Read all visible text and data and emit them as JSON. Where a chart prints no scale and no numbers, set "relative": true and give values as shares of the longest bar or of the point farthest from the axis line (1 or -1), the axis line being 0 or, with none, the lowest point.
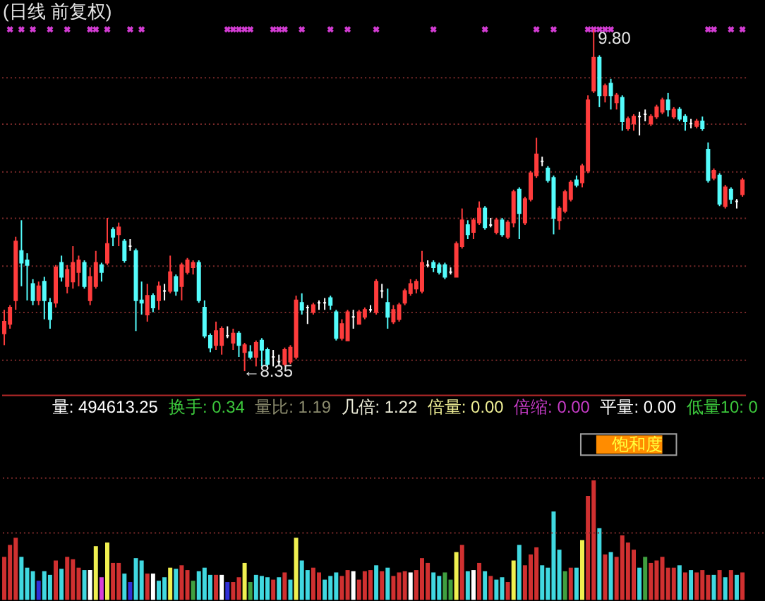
{
  "chart_data": [
    {
      "type": "candlestick",
      "title": "(日线 前复权)",
      "categories": [
        null,
        null,
        null,
        null,
        null,
        null,
        null,
        null,
        null,
        null,
        null,
        null,
        null,
        null,
        null,
        null,
        null,
        null,
        null,
        null,
        null,
        null,
        null,
        null,
        null,
        null,
        null,
        null,
        null,
        null,
        null,
        null,
        null,
        null,
        null,
        null,
        null,
        null,
        null,
        null,
        null,
        null,
        null,
        null,
        null,
        null,
        null,
        null,
        null,
        null,
        null,
        null,
        null,
        null,
        null,
        null,
        null,
        null,
        null,
        null,
        null,
        null,
        null,
        null,
        null,
        null,
        null,
        null,
        null,
        null,
        null,
        null,
        null,
        null,
        null,
        null,
        null,
        null,
        null,
        null,
        null,
        null,
        null,
        null,
        null,
        null,
        null,
        null,
        null,
        null,
        null,
        null,
        null,
        null,
        null,
        null,
        null,
        null,
        null,
        null,
        null,
        null,
        null,
        null,
        null,
        null,
        null,
        null,
        null,
        null,
        null,
        null,
        null,
        null,
        null,
        null,
        null,
        null,
        null,
        null,
        null,
        null,
        null,
        null,
        null,
        null,
        null,
        null,
        null,
        null
      ],
      "ohlc": [
        [
          8.51,
          8.61,
          8.46,
          8.56
        ],
        [
          8.55,
          8.63,
          8.53,
          8.62
        ],
        [
          8.65,
          8.92,
          8.61,
          8.9
        ],
        [
          8.86,
          8.99,
          8.71,
          8.81
        ],
        [
          8.82,
          8.85,
          8.65,
          8.8
        ],
        [
          8.72,
          8.74,
          8.63,
          8.65
        ],
        [
          8.65,
          8.73,
          8.63,
          8.71
        ],
        [
          8.73,
          8.75,
          8.57,
          8.65
        ],
        [
          8.64,
          8.66,
          8.53,
          8.57
        ],
        [
          8.64,
          8.8,
          8.62,
          8.79
        ],
        [
          8.81,
          8.84,
          8.73,
          8.75
        ],
        [
          8.71,
          8.8,
          8.68,
          8.78
        ],
        [
          8.73,
          8.88,
          8.7,
          8.81
        ],
        [
          8.77,
          8.84,
          8.71,
          8.82
        ],
        [
          8.81,
          8.82,
          8.7,
          8.71
        ],
        [
          8.65,
          8.79,
          8.63,
          8.75
        ],
        [
          8.71,
          8.86,
          8.7,
          8.81
        ],
        [
          8.8,
          8.81,
          8.73,
          8.77
        ],
        [
          8.81,
          9.0,
          8.8,
          8.89
        ],
        [
          8.95,
          8.96,
          8.88,
          8.92
        ],
        [
          8.93,
          8.98,
          8.88,
          8.96
        ],
        [
          8.9,
          8.91,
          8.81,
          8.82
        ],
        [
          8.88,
          8.91,
          8.86,
          8.88
        ],
        [
          8.86,
          8.87,
          8.52,
          8.65
        ],
        [
          8.65,
          8.73,
          8.59,
          8.64
        ],
        [
          8.59,
          8.72,
          8.56,
          8.67
        ],
        [
          8.67,
          8.68,
          8.6,
          8.62
        ],
        [
          8.65,
          8.73,
          8.61,
          8.71
        ],
        [
          8.69,
          8.72,
          8.65,
          8.69
        ],
        [
          8.69,
          8.84,
          8.68,
          8.77
        ],
        [
          8.75,
          8.76,
          8.67,
          8.69
        ],
        [
          8.71,
          8.81,
          8.65,
          8.8
        ],
        [
          8.77,
          8.83,
          8.76,
          8.82
        ],
        [
          8.79,
          8.82,
          8.76,
          8.81
        ],
        [
          8.81,
          8.82,
          8.64,
          8.65
        ],
        [
          8.62,
          8.65,
          8.49,
          8.5
        ],
        [
          8.5,
          8.51,
          8.43,
          8.45
        ],
        [
          8.46,
          8.56,
          8.44,
          8.52
        ],
        [
          8.46,
          8.54,
          8.42,
          8.53
        ],
        [
          8.5,
          8.54,
          8.49,
          8.5
        ],
        [
          8.47,
          8.53,
          8.44,
          8.51
        ],
        [
          8.51,
          8.52,
          8.41,
          8.46
        ],
        [
          8.43,
          8.47,
          8.35,
          8.46
        ],
        [
          8.43,
          8.46,
          8.4,
          8.41
        ],
        [
          8.41,
          8.48,
          8.37,
          8.47
        ],
        [
          8.48,
          8.49,
          8.37,
          8.44
        ],
        [
          8.44,
          8.45,
          8.37,
          8.38
        ],
        [
          8.41,
          8.44,
          8.37,
          8.41
        ],
        [
          8.39,
          8.42,
          8.37,
          8.39
        ],
        [
          8.38,
          8.45,
          8.37,
          8.44
        ],
        [
          8.39,
          8.46,
          8.38,
          8.45
        ],
        [
          8.41,
          8.67,
          8.4,
          8.65
        ],
        [
          8.64,
          8.68,
          8.59,
          8.61
        ],
        [
          8.62,
          8.63,
          8.55,
          8.62
        ],
        [
          8.6,
          8.64,
          8.59,
          8.63
        ],
        [
          8.64,
          8.65,
          8.61,
          8.64
        ],
        [
          8.64,
          8.66,
          8.61,
          8.64
        ],
        [
          8.66,
          8.67,
          8.61,
          8.63
        ],
        [
          8.6,
          8.61,
          8.48,
          8.49
        ],
        [
          8.49,
          8.57,
          8.48,
          8.55
        ],
        [
          8.48,
          8.61,
          8.48,
          8.6
        ],
        [
          8.58,
          8.61,
          8.53,
          8.58
        ],
        [
          8.55,
          8.61,
          8.55,
          8.6
        ],
        [
          8.58,
          8.62,
          8.57,
          8.61
        ],
        [
          8.61,
          8.63,
          8.6,
          8.61
        ],
        [
          8.6,
          8.74,
          8.59,
          8.73
        ],
        [
          8.69,
          8.72,
          8.66,
          8.69
        ],
        [
          8.64,
          8.7,
          8.53,
          8.58
        ],
        [
          8.56,
          8.63,
          8.55,
          8.61
        ],
        [
          8.57,
          8.64,
          8.56,
          8.63
        ],
        [
          8.64,
          8.7,
          8.63,
          8.69
        ],
        [
          8.68,
          8.74,
          8.67,
          8.72
        ],
        [
          8.7,
          8.74,
          8.68,
          8.73
        ],
        [
          8.69,
          8.86,
          8.68,
          8.81
        ],
        [
          8.8,
          8.82,
          8.79,
          8.8
        ],
        [
          8.81,
          8.82,
          8.77,
          8.79
        ],
        [
          8.8,
          8.81,
          8.76,
          8.77
        ],
        [
          8.8,
          8.81,
          8.74,
          8.75
        ],
        [
          8.77,
          8.79,
          8.76,
          8.77
        ],
        [
          8.75,
          8.9,
          8.75,
          8.89
        ],
        [
          8.88,
          9.04,
          8.87,
          8.99
        ],
        [
          8.97,
          8.99,
          8.91,
          8.93
        ],
        [
          8.94,
          9.0,
          8.91,
          8.99
        ],
        [
          8.98,
          9.07,
          8.97,
          9.04
        ],
        [
          9.04,
          9.05,
          8.95,
          8.96
        ],
        [
          8.97,
          9.0,
          8.96,
          8.97
        ],
        [
          8.94,
          9.0,
          8.93,
          8.99
        ],
        [
          8.99,
          9.0,
          8.92,
          8.93
        ],
        [
          8.92,
          8.99,
          8.91,
          8.98
        ],
        [
          8.98,
          9.12,
          8.96,
          9.11
        ],
        [
          9.12,
          9.13,
          8.91,
          9.02
        ],
        [
          8.98,
          9.09,
          8.97,
          9.08
        ],
        [
          9.08,
          9.2,
          9.07,
          9.19
        ],
        [
          9.18,
          9.34,
          9.17,
          9.27
        ],
        [
          9.24,
          9.26,
          9.22,
          9.24
        ],
        [
          9.21,
          9.22,
          9.15,
          9.16
        ],
        [
          9.17,
          9.18,
          8.93,
          9.0
        ],
        [
          8.99,
          9.05,
          8.95,
          9.04
        ],
        [
          9.03,
          9.12,
          9.02,
          9.11
        ],
        [
          9.08,
          9.16,
          9.07,
          9.15
        ],
        [
          9.16,
          9.18,
          9.13,
          9.14
        ],
        [
          9.15,
          9.23,
          9.13,
          9.22
        ],
        [
          9.2,
          9.52,
          9.19,
          9.5
        ],
        [
          9.54,
          9.8,
          9.53,
          9.68
        ],
        [
          9.68,
          9.69,
          9.47,
          9.52
        ],
        [
          9.52,
          9.57,
          9.49,
          9.56
        ],
        [
          9.57,
          9.59,
          9.46,
          9.52
        ],
        [
          9.49,
          9.53,
          9.46,
          9.52
        ],
        [
          9.51,
          9.52,
          9.37,
          9.41
        ],
        [
          9.38,
          9.43,
          9.37,
          9.42
        ],
        [
          9.4,
          9.44,
          9.37,
          9.43
        ],
        [
          9.43,
          9.45,
          9.35,
          9.43
        ],
        [
          9.44,
          9.46,
          9.41,
          9.44
        ],
        [
          9.4,
          9.44,
          9.39,
          9.43
        ],
        [
          9.43,
          9.48,
          9.42,
          9.47
        ],
        [
          9.45,
          9.51,
          9.44,
          9.5
        ],
        [
          9.5,
          9.53,
          9.43,
          9.46
        ],
        [
          9.43,
          9.47,
          9.42,
          9.46
        ],
        [
          9.46,
          9.47,
          9.41,
          9.42
        ],
        [
          9.43,
          9.44,
          9.37,
          9.41
        ],
        [
          9.4,
          9.42,
          9.38,
          9.4
        ],
        [
          9.39,
          9.42,
          9.38,
          9.41
        ],
        [
          9.41,
          9.43,
          9.37,
          9.38
        ],
        [
          9.29,
          9.32,
          9.15,
          9.16
        ],
        [
          9.17,
          9.21,
          9.16,
          9.2
        ],
        [
          9.18,
          9.19,
          9.05,
          9.06
        ],
        [
          9.05,
          9.14,
          9.04,
          9.13
        ],
        [
          9.12,
          9.13,
          9.06,
          9.08
        ],
        [
          9.07,
          9.08,
          9.04,
          9.07
        ],
        [
          9.1,
          9.17,
          9.09,
          9.16
        ]
      ],
      "colors": [
        "#ff3c3c",
        "#ff3c3c",
        "#ff3c3c",
        "#54fcfc",
        "#54fcfc",
        "#54fcfc",
        "#ff3c3c",
        "#54fcfc",
        "#54fcfc",
        "#ff3c3c",
        "#54fcfc",
        "#ff3c3c",
        "#ff3c3c",
        "#ff3c3c",
        "#54fcfc",
        "#ff3c3c",
        "#ff3c3c",
        "#54fcfc",
        "#ff3c3c",
        "#54fcfc",
        "#ff3c3c",
        "#54fcfc",
        "#ffffff",
        "#54fcfc",
        "#54fcfc",
        "#ff3c3c",
        "#54fcfc",
        "#ff3c3c",
        "#ffffff",
        "#ff3c3c",
        "#54fcfc",
        "#ff3c3c",
        "#ff3c3c",
        "#ff3c3c",
        "#54fcfc",
        "#54fcfc",
        "#54fcfc",
        "#ff3c3c",
        "#ff3c3c",
        "#ffffff",
        "#ff3c3c",
        "#54fcfc",
        "#ff3c3c",
        "#54fcfc",
        "#ff3c3c",
        "#54fcfc",
        "#54fcfc",
        "#ffffff",
        "#ffffff",
        "#ff3c3c",
        "#ff3c3c",
        "#ff3c3c",
        "#54fcfc",
        "#ffffff",
        "#ff3c3c",
        "#ffffff",
        "#ffffff",
        "#54fcfc",
        "#54fcfc",
        "#ff3c3c",
        "#ff3c3c",
        "#ffffff",
        "#ff3c3c",
        "#ff3c3c",
        "#ffffff",
        "#ff3c3c",
        "#ffffff",
        "#54fcfc",
        "#ff3c3c",
        "#ff3c3c",
        "#ff3c3c",
        "#ff3c3c",
        "#ff3c3c",
        "#ff3c3c",
        "#ffffff",
        "#54fcfc",
        "#54fcfc",
        "#54fcfc",
        "#ffffff",
        "#ff3c3c",
        "#ff3c3c",
        "#54fcfc",
        "#ff3c3c",
        "#ff3c3c",
        "#54fcfc",
        "#ffffff",
        "#ff3c3c",
        "#54fcfc",
        "#ff3c3c",
        "#ff3c3c",
        "#54fcfc",
        "#ff3c3c",
        "#ff3c3c",
        "#ff3c3c",
        "#ffffff",
        "#54fcfc",
        "#54fcfc",
        "#ff3c3c",
        "#ff3c3c",
        "#ff3c3c",
        "#54fcfc",
        "#ff3c3c",
        "#ff3c3c",
        "#ff3c3c",
        "#54fcfc",
        "#ff3c3c",
        "#54fcfc",
        "#ff3c3c",
        "#54fcfc",
        "#ff3c3c",
        "#ff3c3c",
        "#ffffff",
        "#ffffff",
        "#ff3c3c",
        "#ff3c3c",
        "#ff3c3c",
        "#54fcfc",
        "#ff3c3c",
        "#54fcfc",
        "#54fcfc",
        "#ffffff",
        "#ff3c3c",
        "#54fcfc",
        "#54fcfc",
        "#ff3c3c",
        "#54fcfc",
        "#ff3c3c",
        "#54fcfc",
        "#ffffff",
        "#ff3c3c"
      ],
      "ylim": [
        8.25,
        9.92
      ],
      "yticks": [
        {
          "value": 8.4,
          "label": null
        },
        {
          "value": 8.6,
          "label": null
        },
        {
          "value": 8.8,
          "label": null
        },
        {
          "value": 9.0,
          "label": null
        },
        {
          "value": 9.2,
          "label": null
        },
        {
          "value": 9.4,
          "label": null
        },
        {
          "value": 9.6,
          "label": null
        }
      ],
      "grid": "y",
      "series": [
        {
          "type": "scatter",
          "marker": "cross",
          "color": "#d23cd2",
          "values": [
            null,
            9.8,
            null,
            9.8,
            null,
            9.8,
            null,
            null,
            9.8,
            null,
            null,
            9.8,
            null,
            null,
            null,
            9.8,
            9.8,
            null,
            9.8,
            null,
            null,
            null,
            9.8,
            null,
            9.8,
            null,
            null,
            null,
            null,
            null,
            null,
            null,
            null,
            null,
            null,
            null,
            null,
            null,
            null,
            9.8,
            9.8,
            9.8,
            9.8,
            9.8,
            null,
            null,
            null,
            9.8,
            9.8,
            9.8,
            null,
            null,
            9.8,
            null,
            null,
            null,
            null,
            9.8,
            null,
            null,
            9.8,
            null,
            null,
            null,
            null,
            9.8,
            null,
            null,
            null,
            null,
            null,
            null,
            null,
            null,
            null,
            9.8,
            null,
            null,
            null,
            null,
            null,
            null,
            null,
            null,
            9.8,
            null,
            null,
            null,
            null,
            null,
            null,
            null,
            null,
            9.8,
            null,
            null,
            9.8,
            null,
            null,
            null,
            null,
            null,
            9.8,
            9.8,
            9.8,
            9.8,
            9.8,
            null,
            null,
            null,
            null,
            null,
            null,
            null,
            null,
            null,
            null,
            null,
            null,
            null,
            null,
            null,
            null,
            9.8,
            9.8,
            null,
            null,
            9.8,
            null,
            9.8
          ]
        }
      ],
      "annotations": [
        {
          "text": "9.80",
          "y": 9.8
        },
        {
          "text": "←8.35",
          "y": 8.35
        }
      ]
    },
    {
      "type": "other",
      "annotations": [
        "量: 494613.25",
        "换手: 0.34",
        "量比: 1.19",
        "几倍: 1.22",
        "倍量: 0.00",
        "倍缩: 0.00",
        "平量: 0.00",
        "低量10: 0"
      ]
    },
    {
      "type": "bar",
      "relative": true,
      "categories": [
        null,
        null,
        null,
        null,
        null,
        null,
        null,
        null,
        null,
        null,
        null,
        null,
        null,
        null,
        null,
        null,
        null,
        null,
        null,
        null,
        null,
        null,
        null,
        null,
        null,
        null,
        null,
        null,
        null,
        null,
        null,
        null,
        null,
        null,
        null,
        null,
        null,
        null,
        null,
        null,
        null,
        null,
        null,
        null,
        null,
        null,
        null,
        null,
        null,
        null,
        null,
        null,
        null,
        null,
        null,
        null,
        null,
        null,
        null,
        null,
        null,
        null,
        null,
        null,
        null,
        null,
        null,
        null,
        null,
        null,
        null,
        null,
        null,
        null,
        null,
        null,
        null,
        null,
        null,
        null,
        null,
        null,
        null,
        null,
        null,
        null,
        null,
        null,
        null,
        null,
        null,
        null,
        null,
        null,
        null,
        null,
        null,
        null,
        null,
        null,
        null,
        null,
        null,
        null,
        null,
        null,
        null,
        null,
        null,
        null,
        null,
        null,
        null,
        null,
        null,
        null,
        null,
        null,
        null,
        null,
        null,
        null,
        null,
        null,
        null,
        null,
        null,
        null,
        null,
        null
      ],
      "values": [
        0.36,
        0.46,
        0.52,
        0.36,
        0.27,
        0.24,
        0.16,
        0.24,
        0.21,
        0.33,
        0.26,
        0.36,
        0.34,
        0.27,
        0.25,
        0.25,
        0.45,
        0.19,
        0.48,
        0.31,
        0.31,
        0.22,
        0.15,
        0.35,
        0.33,
        0.22,
        0.22,
        0.16,
        0.19,
        0.27,
        0.26,
        0.29,
        0.25,
        0.16,
        0.24,
        0.27,
        0.21,
        0.21,
        0.21,
        0.15,
        0.15,
        0.19,
        0.31,
        0.15,
        0.21,
        0.2,
        0.19,
        0.17,
        0.19,
        0.23,
        0.17,
        0.52,
        0.33,
        0.25,
        0.27,
        0.23,
        0.17,
        0.2,
        0.23,
        0.2,
        0.25,
        0.24,
        0.17,
        0.24,
        0.25,
        0.29,
        0.24,
        0.27,
        0.2,
        0.23,
        0.24,
        0.23,
        0.25,
        0.35,
        0.31,
        0.23,
        0.2,
        0.23,
        0.17,
        0.4,
        0.46,
        0.24,
        0.25,
        0.31,
        0.24,
        0.2,
        0.17,
        0.19,
        0.15,
        0.33,
        0.46,
        0.29,
        0.38,
        0.44,
        0.29,
        0.27,
        0.74,
        0.42,
        0.24,
        0.27,
        0.27,
        0.5,
        0.87,
        1,
        0.6,
        0.38,
        0.4,
        0.36,
        0.54,
        0.48,
        0.42,
        0.27,
        0.36,
        0.31,
        0.33,
        0.36,
        0.27,
        0.27,
        0.29,
        0.23,
        0.25,
        0.23,
        0.25,
        0.21,
        0.21,
        0.25,
        0.19,
        0.25,
        0.21,
        0.23
      ],
      "colors": [
        "#d03030",
        "#d03030",
        "#d03030",
        "#40d8e0",
        "#40d8e0",
        "#40d8e0",
        "#3030d8",
        "#40d8e0",
        "#40d8e0",
        "#d03030",
        "#40d8e0",
        "#d03030",
        "#d03030",
        "#d03030",
        "#40d8e0",
        "#ffffff",
        "#f0f050",
        "#d840d8",
        "#f0f050",
        "#d03030",
        "#d03030",
        "#40d8e0",
        "#3030d8",
        "#40d8e0",
        "#40d8e0",
        "#d03030",
        "#ffffff",
        "#40d8e0",
        "#40d8e0",
        "#f0f050",
        "#40d8e0",
        "#d03030",
        "#d03030",
        "#40a040",
        "#40d8e0",
        "#40d8e0",
        "#40d8e0",
        "#d03030",
        "#ffffff",
        "#3030d8",
        "#d03030",
        "#d03030",
        "#f0f050",
        "#40a040",
        "#40d8e0",
        "#40d8e0",
        "#40d8e0",
        "#d03030",
        "#40d8e0",
        "#d03030",
        "#40d8e0",
        "#f0f050",
        "#40d8e0",
        "#40d8e0",
        "#d03030",
        "#d03030",
        "#40d8e0",
        "#40d8e0",
        "#40d8e0",
        "#d03030",
        "#d03030",
        "#ffffff",
        "#d03030",
        "#d03030",
        "#d03030",
        "#40d8e0",
        "#d03030",
        "#40d8e0",
        "#d03030",
        "#d03030",
        "#d03030",
        "#ffffff",
        "#d03030",
        "#d03030",
        "#d03030",
        "#40d8e0",
        "#40d8e0",
        "#40a040",
        "#40a040",
        "#f0f050",
        "#d03030",
        "#40d8e0",
        "#ffffff",
        "#d03030",
        "#40d8e0",
        "#d03030",
        "#40d8e0",
        "#40d8e0",
        "#d03030",
        "#f0f050",
        "#40d8e0",
        "#d03030",
        "#d03030",
        "#d03030",
        "#40d8e0",
        "#40d8e0",
        "#40d8e0",
        "#40d8e0",
        "#40a040",
        "#d03030",
        "#40d8e0",
        "#f0f050",
        "#d03030",
        "#d03030",
        "#40d8e0",
        "#d03030",
        "#40d8e0",
        "#d03030",
        "#d03030",
        "#d03030",
        "#d03030",
        "#40d8e0",
        "#40a040",
        "#d03030",
        "#d03030",
        "#d03030",
        "#d03030",
        "#d03030",
        "#40d8e0",
        "#d03030",
        "#40d8e0",
        "#d03030",
        "#d03030",
        "#d03030",
        "#40d8e0",
        "#d03030",
        "#40d8e0",
        "#d03030",
        "#40d8e0",
        "#d03030"
      ],
      "ref_lines": [
        {
          "axis": "y",
          "value": 1.02,
          "color": "#7a2a2a",
          "line_style": "dotted"
        },
        {
          "axis": "y",
          "value": 0.56,
          "color": "#7a2a2a",
          "line_style": "dotted"
        }
      ],
      "annotations": [
        "饱和度"
      ]
    }
  ]
}
